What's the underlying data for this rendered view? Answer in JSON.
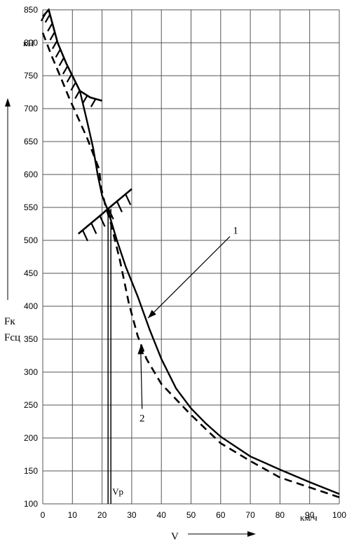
{
  "chart_data": {
    "type": "line",
    "title": "",
    "xlabel": "V",
    "ylabel_top": "Fк",
    "ylabel_bottom": "Fсц",
    "y_unit": "кН",
    "x_unit": "км/ч",
    "xlim": [
      0,
      100
    ],
    "ylim": [
      100,
      850
    ],
    "x_ticks": [
      0,
      10,
      20,
      30,
      40,
      50,
      60,
      70,
      80,
      90,
      100
    ],
    "y_ticks": [
      100,
      150,
      200,
      250,
      300,
      350,
      400,
      450,
      500,
      550,
      600,
      650,
      700,
      750,
      800,
      850
    ],
    "grid": true,
    "series": [
      {
        "name": "1",
        "style": "solid",
        "points": [
          [
            12.5,
            727
          ],
          [
            15,
            680
          ],
          [
            17,
            640
          ],
          [
            18.5,
            600
          ],
          [
            20,
            568
          ],
          [
            22,
            545
          ],
          [
            25,
            500
          ],
          [
            28,
            460
          ],
          [
            32,
            415
          ],
          [
            36,
            365
          ],
          [
            40,
            320
          ],
          [
            45,
            275
          ],
          [
            50,
            245
          ],
          [
            55,
            222
          ],
          [
            60,
            202
          ],
          [
            70,
            172
          ],
          [
            80,
            152
          ],
          [
            90,
            133
          ],
          [
            100,
            115
          ]
        ]
      },
      {
        "name": "2",
        "style": "dashed",
        "points": [
          [
            0,
            815
          ],
          [
            3,
            780
          ],
          [
            6,
            748
          ],
          [
            9,
            715
          ],
          [
            12,
            685
          ],
          [
            15,
            655
          ],
          [
            18,
            620
          ],
          [
            19,
            608
          ],
          [
            19.7,
            580
          ],
          [
            21,
            555
          ],
          [
            23,
            525
          ],
          [
            26,
            470
          ],
          [
            29,
            405
          ],
          [
            32,
            355
          ],
          [
            35,
            320
          ],
          [
            40,
            282
          ],
          [
            50,
            235
          ],
          [
            60,
            192
          ],
          [
            70,
            165
          ],
          [
            80,
            140
          ],
          [
            90,
            125
          ],
          [
            100,
            110
          ]
        ]
      }
    ],
    "hatched_limit_top": [
      [
        0,
        840
      ],
      [
        2,
        850
      ],
      [
        5,
        800
      ],
      [
        8,
        768
      ],
      [
        12.5,
        727
      ],
      [
        16,
        717
      ],
      [
        20,
        712
      ]
    ],
    "hatched_limit_mid": [
      [
        12,
        510
      ],
      [
        20,
        540
      ],
      [
        22,
        548
      ],
      [
        30,
        578
      ]
    ],
    "vp_marker": {
      "x": 22.5,
      "label": "Vp"
    },
    "annotations": [
      {
        "text": "1",
        "x": 65,
        "y": 510,
        "arrow_to": [
          35.5,
          382
        ]
      },
      {
        "text": "2",
        "x": 33.5,
        "y": 225,
        "arrow_to": [
          33,
          340
        ]
      }
    ]
  }
}
